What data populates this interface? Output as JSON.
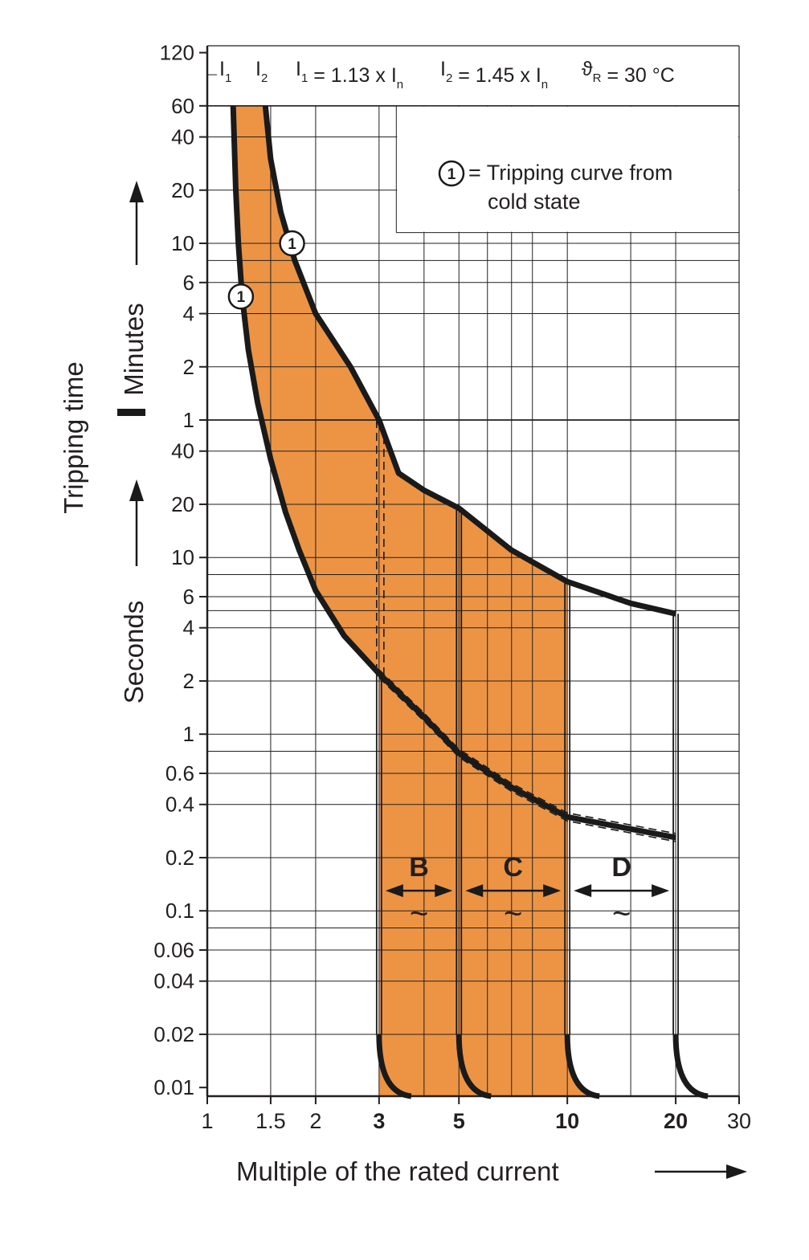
{
  "chart_data": {
    "type": "line",
    "xlabel": "Multiple of the rated current",
    "ylabel": "Tripping time",
    "x_scale": "log",
    "y_scale": "log",
    "xlim": [
      1,
      30
    ],
    "x_ticks": [
      {
        "value": 1,
        "label": "1",
        "bold": false
      },
      {
        "value": 1.5,
        "label": "1.5",
        "bold": false
      },
      {
        "value": 2,
        "label": "2",
        "bold": false
      },
      {
        "value": 3,
        "label": "3",
        "bold": true
      },
      {
        "value": 5,
        "label": "5",
        "bold": true
      },
      {
        "value": 10,
        "label": "10",
        "bold": true
      },
      {
        "value": 20,
        "label": "20",
        "bold": true
      },
      {
        "value": 30,
        "label": "30",
        "bold": false
      }
    ],
    "y_units": {
      "upper": "Minutes",
      "lower": "Seconds"
    },
    "y_ticks_minutes": [
      {
        "value": 120,
        "label": "120"
      },
      {
        "value": 60,
        "label": "60"
      },
      {
        "value": 40,
        "label": "40"
      },
      {
        "value": 20,
        "label": "20"
      },
      {
        "value": 10,
        "label": "10"
      },
      {
        "value": 6,
        "label": "6"
      },
      {
        "value": 4,
        "label": "4"
      },
      {
        "value": 2,
        "label": "2"
      },
      {
        "value": 1,
        "label": "1"
      }
    ],
    "y_ticks_seconds": [
      {
        "value": 40,
        "label": "40"
      },
      {
        "value": 20,
        "label": "20"
      },
      {
        "value": 10,
        "label": "10"
      },
      {
        "value": 6,
        "label": "6"
      },
      {
        "value": 4,
        "label": "4"
      },
      {
        "value": 2,
        "label": "2"
      },
      {
        "value": 1,
        "label": "1"
      },
      {
        "value": 0.6,
        "label": "0.6"
      },
      {
        "value": 0.4,
        "label": "0.4"
      },
      {
        "value": 0.2,
        "label": "0.2"
      },
      {
        "value": 0.1,
        "label": "0.1"
      },
      {
        "value": 0.06,
        "label": "0.06"
      },
      {
        "value": 0.04,
        "label": "0.04"
      },
      {
        "value": 0.02,
        "label": "0.02"
      },
      {
        "value": 0.01,
        "label": "0.01"
      }
    ],
    "header": {
      "i1": "I",
      "i1_sub": "1",
      "i2": "I",
      "i2_sub": "2",
      "eq1_a": "I",
      "eq1_a_sub": "1",
      "eq1_b": " = 1.13 x I",
      "eq1_b_sub": "n",
      "eq2_a": "I",
      "eq2_a_sub": "2",
      "eq2_b": " = 1.45 x I",
      "eq2_b_sub": "n",
      "theta": "ϑ",
      "theta_sub": "R",
      "theta_val": " = 30 °C"
    },
    "legend": {
      "marker": "1",
      "text_line1": "= Tripping curve from",
      "text_line2": "cold state"
    },
    "bands": [
      {
        "label": "B",
        "tilde": "~",
        "from": 3,
        "to": 5
      },
      {
        "label": "C",
        "tilde": "~",
        "from": 5,
        "to": 10
      },
      {
        "label": "D",
        "tilde": "~",
        "from": 10,
        "to": 20
      }
    ],
    "colors": {
      "fill": "#ec9444",
      "line": "#1a1a1a",
      "grid": "#231f20"
    },
    "series": [
      {
        "name": "I1 (lower limit)",
        "points_seconds": [
          [
            1.18,
            3600
          ],
          [
            1.2,
            1200
          ],
          [
            1.22,
            600
          ],
          [
            1.25,
            300
          ],
          [
            1.3,
            150
          ],
          [
            1.38,
            75
          ],
          [
            1.5,
            36
          ],
          [
            1.65,
            18
          ],
          [
            1.8,
            11
          ],
          [
            2.0,
            6.5
          ],
          [
            2.4,
            3.6
          ],
          [
            3.0,
            2.2
          ],
          [
            4.0,
            1.25
          ],
          [
            5.0,
            0.78
          ],
          [
            7.0,
            0.5
          ],
          [
            10.0,
            0.34
          ],
          [
            20.0,
            0.26
          ]
        ]
      },
      {
        "name": "I2 (upper limit)",
        "points_seconds": [
          [
            1.45,
            3600
          ],
          [
            1.5,
            1800
          ],
          [
            1.6,
            900
          ],
          [
            1.75,
            480
          ],
          [
            2.0,
            240
          ],
          [
            2.5,
            120
          ],
          [
            3.0,
            60
          ],
          [
            3.4,
            30
          ],
          [
            4.0,
            24
          ],
          [
            5.0,
            19
          ],
          [
            7.0,
            11
          ],
          [
            10.0,
            7.3
          ],
          [
            15.0,
            5.5
          ],
          [
            20.0,
            4.8
          ]
        ]
      }
    ]
  }
}
